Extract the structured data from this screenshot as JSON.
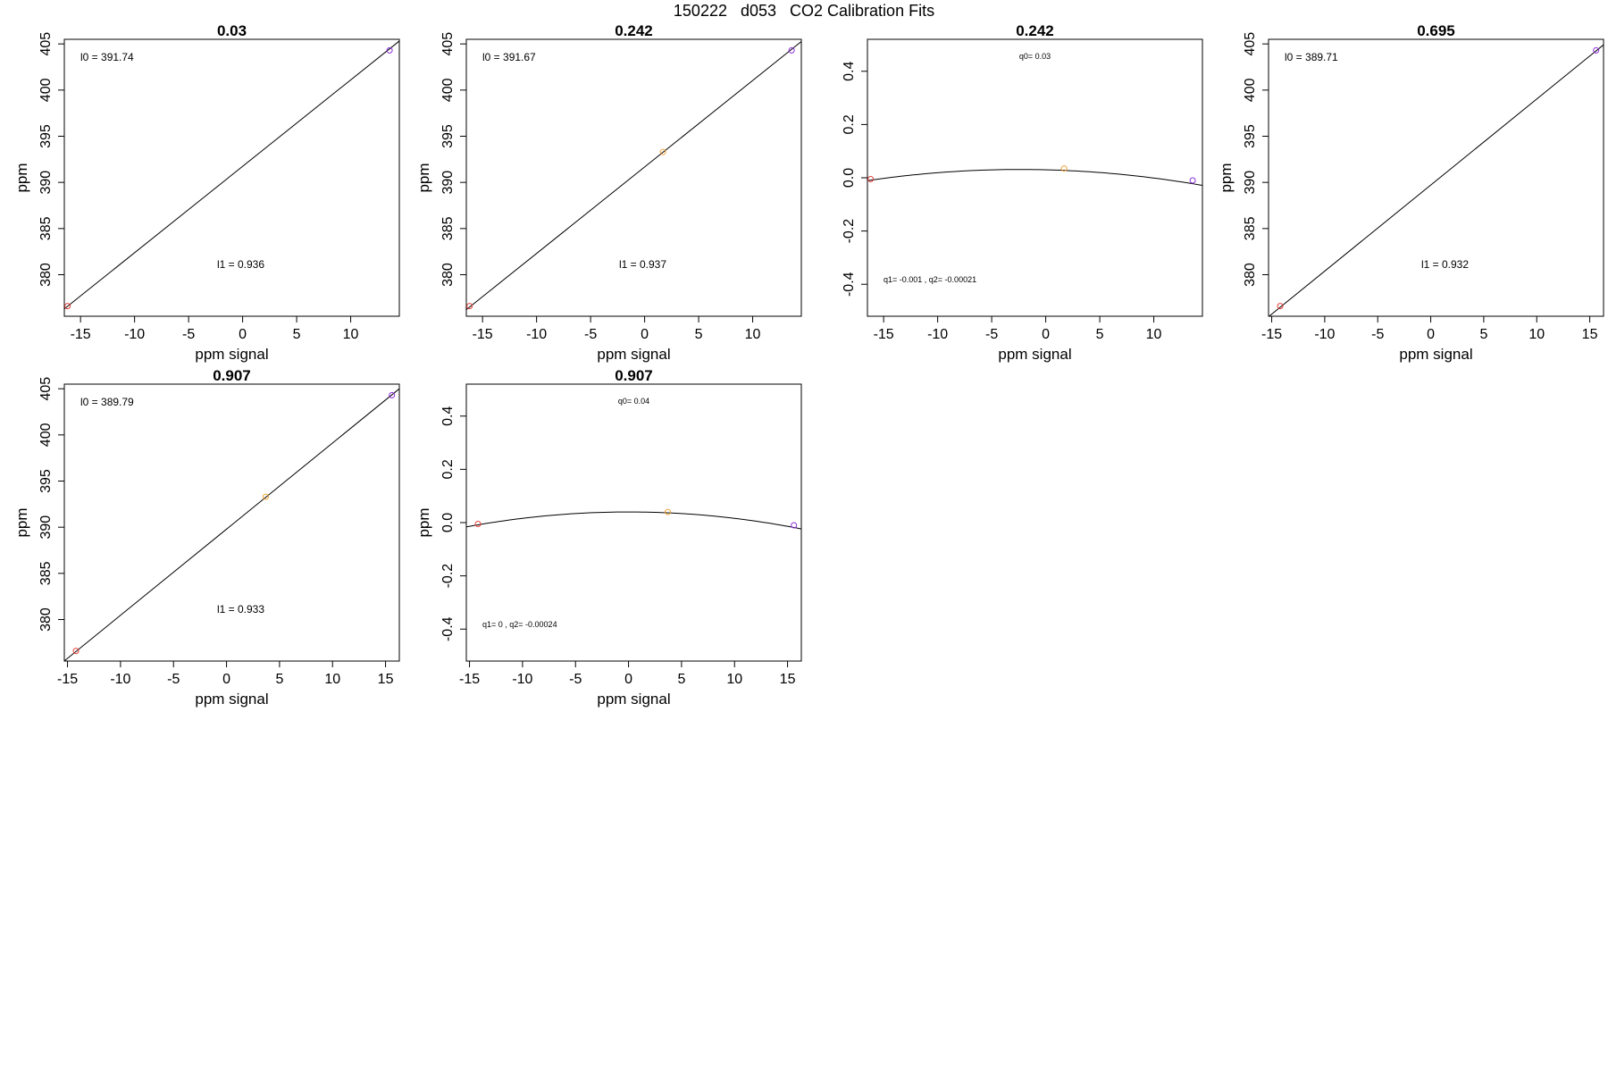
{
  "title": "150222   d053   CO2 Calibration Fits",
  "colors": {
    "low": "#e0403a",
    "mid": "#f0a030",
    "high": "#8a30d8",
    "line": "#000000"
  },
  "chart_data": [
    {
      "type": "scatter",
      "fit": "linear",
      "title": "0.03",
      "xlabel": "ppm signal",
      "ylabel": "ppm",
      "xlim": [
        -16.5,
        14.5
      ],
      "ylim": [
        375.5,
        405.5
      ],
      "xticks": [
        "-15",
        "-10",
        "-5",
        "0",
        "5",
        "10"
      ],
      "yticks": [
        "380",
        "385",
        "390",
        "395",
        "400",
        "405"
      ],
      "points": [
        {
          "x": -16.2,
          "y": 376.6,
          "color": "low"
        },
        {
          "x": 13.6,
          "y": 404.3,
          "color": "high"
        }
      ],
      "line": {
        "intercept": 391.74,
        "slope": 0.936
      },
      "annotations": {
        "top": "l0 =  391.74",
        "bottom": "l1 =  0.936"
      }
    },
    {
      "type": "scatter",
      "fit": "linear",
      "title": "0.242",
      "xlabel": "ppm signal",
      "ylabel": "ppm",
      "xlim": [
        -16.5,
        14.5
      ],
      "ylim": [
        375.5,
        405.5
      ],
      "xticks": [
        "-15",
        "-10",
        "-5",
        "0",
        "5",
        "10"
      ],
      "yticks": [
        "380",
        "385",
        "390",
        "395",
        "400",
        "405"
      ],
      "points": [
        {
          "x": -16.2,
          "y": 376.6,
          "color": "low"
        },
        {
          "x": 1.7,
          "y": 393.3,
          "color": "mid"
        },
        {
          "x": 13.6,
          "y": 404.3,
          "color": "high"
        }
      ],
      "line": {
        "intercept": 391.67,
        "slope": 0.937
      },
      "annotations": {
        "top": "l0 =  391.67",
        "bottom": "l1 =  0.937"
      }
    },
    {
      "type": "scatter",
      "fit": "quadratic",
      "title": "0.242",
      "xlabel": "ppm signal",
      "ylabel": "",
      "xlim": [
        -16.5,
        14.5
      ],
      "ylim": [
        -0.52,
        0.52
      ],
      "xticks": [
        "-15",
        "-10",
        "-5",
        "0",
        "5",
        "10"
      ],
      "yticks": [
        "-0.4",
        "-0.2",
        "0.0",
        "0.2",
        "0.4"
      ],
      "points": [
        {
          "x": -16.2,
          "y": -0.005,
          "color": "low"
        },
        {
          "x": 1.7,
          "y": 0.035,
          "color": "mid"
        },
        {
          "x": 13.6,
          "y": -0.01,
          "color": "high"
        }
      ],
      "curve": {
        "q0": 0.03,
        "q1": -0.001,
        "q2": -0.00021
      },
      "annotations": {
        "top": "q0= 0.03",
        "bottom": "q1= -0.001 , q2= -0.00021"
      }
    },
    {
      "type": "scatter",
      "fit": "linear",
      "title": "0.695",
      "xlabel": "ppm signal",
      "ylabel": "ppm",
      "xlim": [
        -15.3,
        16.3
      ],
      "ylim": [
        375.5,
        405.5
      ],
      "xticks": [
        "-15",
        "-10",
        "-5",
        "0",
        "5",
        "10",
        "15"
      ],
      "yticks": [
        "380",
        "385",
        "390",
        "395",
        "400",
        "405"
      ],
      "points": [
        {
          "x": -14.2,
          "y": 376.6,
          "color": "low"
        },
        {
          "x": 15.6,
          "y": 404.3,
          "color": "high"
        }
      ],
      "line": {
        "intercept": 389.71,
        "slope": 0.932
      },
      "annotations": {
        "top": "l0 =  389.71",
        "bottom": "l1 =  0.932"
      }
    },
    {
      "type": "scatter",
      "fit": "linear",
      "title": "0.907",
      "xlabel": "ppm signal",
      "ylabel": "ppm",
      "xlim": [
        -15.3,
        16.3
      ],
      "ylim": [
        375.5,
        405.5
      ],
      "xticks": [
        "-15",
        "-10",
        "-5",
        "0",
        "5",
        "10",
        "15"
      ],
      "yticks": [
        "380",
        "385",
        "390",
        "395",
        "400",
        "405"
      ],
      "points": [
        {
          "x": -14.2,
          "y": 376.6,
          "color": "low"
        },
        {
          "x": 3.7,
          "y": 393.3,
          "color": "mid"
        },
        {
          "x": 15.6,
          "y": 404.3,
          "color": "high"
        }
      ],
      "line": {
        "intercept": 389.79,
        "slope": 0.933
      },
      "annotations": {
        "top": "l0 =  389.79",
        "bottom": "l1 =  0.933"
      }
    },
    {
      "type": "scatter",
      "fit": "quadratic",
      "title": "0.907",
      "xlabel": "ppm signal",
      "ylabel": "ppm",
      "xlim": [
        -15.3,
        16.3
      ],
      "ylim": [
        -0.52,
        0.52
      ],
      "xticks": [
        "-15",
        "-10",
        "-5",
        "0",
        "5",
        "10",
        "15"
      ],
      "yticks": [
        "-0.4",
        "-0.2",
        "0.0",
        "0.2",
        "0.4"
      ],
      "points": [
        {
          "x": -14.2,
          "y": -0.005,
          "color": "low"
        },
        {
          "x": 3.7,
          "y": 0.04,
          "color": "mid"
        },
        {
          "x": 15.6,
          "y": -0.01,
          "color": "high"
        }
      ],
      "curve": {
        "q0": 0.04,
        "q1": 0,
        "q2": -0.00024
      },
      "annotations": {
        "top": "q0= 0.04",
        "bottom": "q1= 0 , q2= -0.00024"
      }
    }
  ]
}
